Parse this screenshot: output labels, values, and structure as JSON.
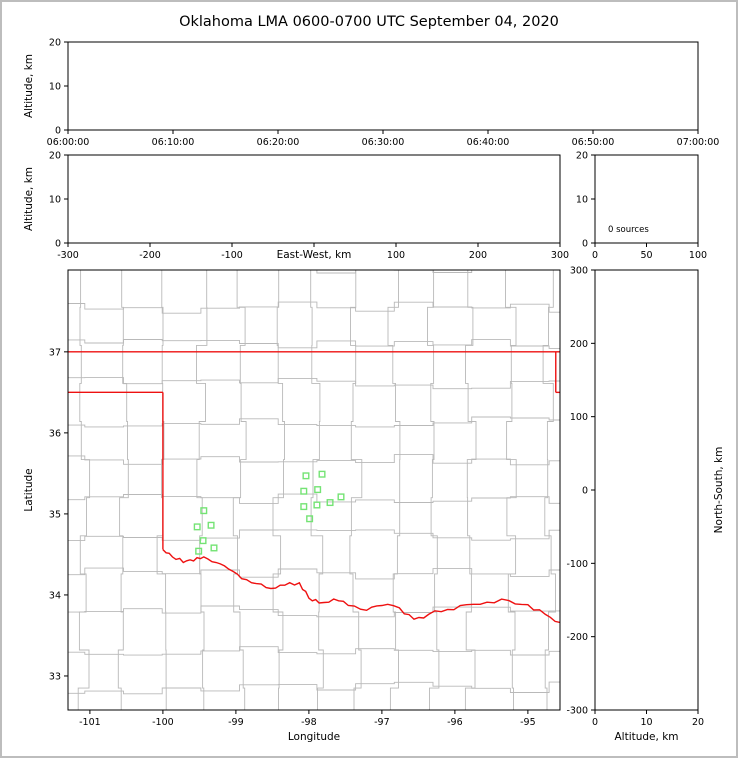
{
  "title": "Oklahoma LMA 0600-0700 UTC September 04, 2020",
  "colors": {
    "state_border": "#ee1111",
    "county_border": "#b9b9b9",
    "station_marker": "#74e374",
    "axis": "#000000",
    "frame": "#bdbdbd"
  },
  "chart_data": [
    {
      "id": "time_height",
      "name": "time-height-panel",
      "type": "scatter",
      "xlabel": "",
      "ylabel": "Altitude, km",
      "xlim": [
        0,
        3600
      ],
      "xticks": [
        0,
        600,
        1200,
        1800,
        2400,
        3000,
        3600
      ],
      "xtick_labels": [
        "06:00:00",
        "06:10:00",
        "06:20:00",
        "06:30:00",
        "06:40:00",
        "06:50:00",
        "07:00:00"
      ],
      "ylim": [
        0,
        20
      ],
      "yticks": [
        0,
        10,
        20
      ],
      "ytick_labels": [
        "0",
        "10",
        "20"
      ],
      "points": []
    },
    {
      "id": "ew_height",
      "name": "east-west-height-panel",
      "type": "scatter",
      "xlabel": "East-West, km",
      "ylabel": "Altitude, km",
      "xlim": [
        -300,
        300
      ],
      "xticks": [
        -300,
        -200,
        -100,
        0,
        100,
        200,
        300
      ],
      "xtick_labels": [
        "-300",
        "-200",
        "-100",
        "",
        "100",
        "200",
        "300"
      ],
      "ylim": [
        0,
        20
      ],
      "yticks": [
        0,
        10,
        20
      ],
      "ytick_labels": [
        "0",
        "10",
        "20"
      ],
      "points": []
    },
    {
      "id": "height_histogram",
      "name": "altitude-histogram-panel",
      "type": "line",
      "xlabel": "",
      "ylabel": "",
      "xlim": [
        0,
        100
      ],
      "xticks": [
        0,
        50,
        100
      ],
      "xtick_labels": [
        "0",
        "50",
        "100"
      ],
      "ylim": [
        0,
        20
      ],
      "yticks": [
        0,
        10,
        20
      ],
      "ytick_labels": [
        "0",
        "10",
        "20"
      ],
      "annotation": "0 sources",
      "points": []
    },
    {
      "id": "plan_view",
      "name": "plan-view-map-panel",
      "type": "scatter",
      "xlabel": "Longitude",
      "ylabel": "Latitude",
      "xlim": [
        -101.3,
        -94.56
      ],
      "xticks": [
        -101,
        -100,
        -99,
        -98,
        -97,
        -96,
        -95
      ],
      "xtick_labels": [
        "-101",
        "-100",
        "-99",
        "-98",
        "-97",
        "-96",
        "-95"
      ],
      "ylim": [
        32.58,
        38.01
      ],
      "yticks": [
        33,
        34,
        35,
        36,
        37
      ],
      "ytick_labels": [
        "33",
        "34",
        "35",
        "36",
        "37"
      ],
      "stations": [
        [
          -98.04,
          35.47
        ],
        [
          -97.82,
          35.49
        ],
        [
          -98.07,
          35.28
        ],
        [
          -97.88,
          35.3
        ],
        [
          -98.07,
          35.09
        ],
        [
          -97.89,
          35.11
        ],
        [
          -97.71,
          35.14
        ],
        [
          -97.56,
          35.21
        ],
        [
          -97.99,
          34.94
        ],
        [
          -99.44,
          35.04
        ],
        [
          -99.53,
          34.84
        ],
        [
          -99.34,
          34.86
        ],
        [
          -99.45,
          34.67
        ],
        [
          -99.3,
          34.58
        ],
        [
          -99.51,
          34.54
        ]
      ],
      "state_boundary": {
        "kansas_border_lat": 37.0,
        "panhandle_south_lat": 36.5,
        "panhandle_east_lon": -100.0,
        "west_border_lat_range": [
          34.56,
          36.5
        ],
        "east_border_lon": -94.618,
        "east_border_jog_lat": 36.5,
        "red_river": [
          [
            -100.0,
            34.56
          ],
          [
            -99.87,
            34.47
          ],
          [
            -99.72,
            34.4
          ],
          [
            -99.58,
            34.42
          ],
          [
            -99.44,
            34.47
          ],
          [
            -99.27,
            34.4
          ],
          [
            -99.1,
            34.32
          ],
          [
            -98.92,
            34.2
          ],
          [
            -98.72,
            34.14
          ],
          [
            -98.52,
            34.08
          ],
          [
            -98.33,
            34.12
          ],
          [
            -98.13,
            34.15
          ],
          [
            -98.0,
            33.96
          ],
          [
            -97.86,
            33.9
          ],
          [
            -97.66,
            33.95
          ],
          [
            -97.46,
            33.87
          ],
          [
            -97.21,
            33.81
          ],
          [
            -97.0,
            33.87
          ],
          [
            -96.76,
            33.84
          ],
          [
            -96.56,
            33.7
          ],
          [
            -96.36,
            33.76
          ],
          [
            -96.1,
            33.82
          ],
          [
            -95.84,
            33.88
          ],
          [
            -95.56,
            33.91
          ],
          [
            -95.26,
            33.93
          ],
          [
            -95.0,
            33.88
          ],
          [
            -94.76,
            33.76
          ],
          [
            -94.56,
            33.66
          ]
        ]
      }
    },
    {
      "id": "ns_height",
      "name": "north-south-height-panel",
      "type": "scatter",
      "xlabel": "Altitude, km",
      "ylabel_right": "North-South, km",
      "xlim": [
        0,
        20
      ],
      "xticks": [
        0,
        10,
        20
      ],
      "xtick_labels": [
        "0",
        "10",
        "20"
      ],
      "ylim": [
        -300,
        300
      ],
      "yticks": [
        -300,
        -200,
        -100,
        0,
        100,
        200,
        300
      ],
      "ytick_labels": [
        "-300",
        "-200",
        "-100",
        "0",
        "100",
        "200",
        "300"
      ],
      "points": []
    }
  ]
}
